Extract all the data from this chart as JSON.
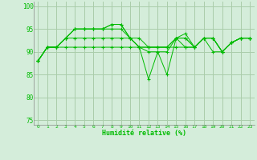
{
  "background_color": "#d4edda",
  "grid_color": "#aaccaa",
  "line_color": "#00bb00",
  "xlabel": "Humidité relative (%)",
  "xlim": [
    -0.5,
    23.5
  ],
  "ylim": [
    74,
    101
  ],
  "yticks": [
    75,
    80,
    85,
    90,
    95,
    100
  ],
  "xticks": [
    0,
    1,
    2,
    3,
    4,
    5,
    6,
    7,
    8,
    9,
    10,
    11,
    12,
    13,
    14,
    15,
    16,
    17,
    18,
    19,
    20,
    21,
    22,
    23
  ],
  "series": [
    [
      88,
      91,
      91,
      93,
      95,
      95,
      95,
      95,
      96,
      96,
      93,
      91,
      84,
      90,
      85,
      93,
      94,
      91,
      93,
      93,
      90,
      92,
      93,
      93
    ],
    [
      88,
      91,
      91,
      93,
      95,
      95,
      95,
      95,
      96,
      96,
      93,
      91,
      90,
      90,
      90,
      93,
      91,
      91,
      93,
      90,
      90,
      92,
      93,
      93
    ],
    [
      88,
      91,
      91,
      93,
      95,
      95,
      95,
      95,
      95,
      95,
      93,
      91,
      91,
      91,
      91,
      93,
      93,
      91,
      93,
      93,
      90,
      92,
      93,
      93
    ],
    [
      88,
      91,
      91,
      93,
      93,
      93,
      93,
      93,
      93,
      93,
      93,
      93,
      91,
      91,
      91,
      93,
      93,
      91,
      93,
      93,
      90,
      92,
      93,
      93
    ],
    [
      88,
      91,
      91,
      91,
      91,
      91,
      91,
      91,
      91,
      91,
      91,
      91,
      91,
      91,
      91,
      91,
      91,
      91,
      93,
      93,
      90,
      92,
      93,
      93
    ]
  ]
}
